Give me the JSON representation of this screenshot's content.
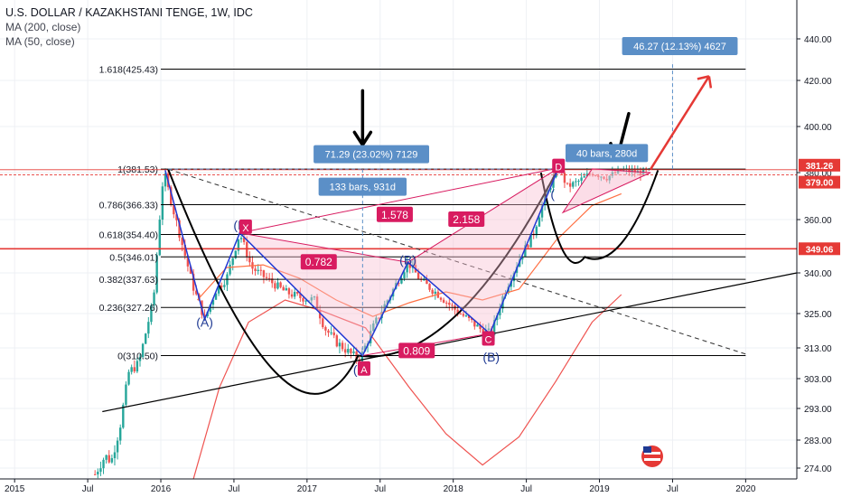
{
  "header": {
    "title": "U.S. DOLLAR / KAZAKHSTANI TENGE, 1W, IDC",
    "indicators": [
      "MA (200, close)",
      "MA (50, close)"
    ]
  },
  "colors": {
    "fib_line": "#000000",
    "red_level": "#e53935",
    "blue_pattern": "#2139d4",
    "magenta": "#d81b60",
    "pink_fill": "#f8bbd0",
    "box_blue": "#5b8fc7",
    "ma200": "#ef5350",
    "ma50": "#ff7043",
    "candle_up": "#26a69a",
    "candle_down": "#ef5350"
  },
  "chart_data": {
    "type": "candlestick",
    "price_axis_ticks": [
      440.0,
      420.0,
      400.0,
      380.0,
      360.0,
      340.0,
      325.0,
      313.0,
      303.0,
      293.0,
      283.0,
      274.0
    ],
    "price_axis_labels": [
      "440.00",
      "420.00",
      "400.00",
      "380.00",
      "360.00",
      "340.00",
      "325.00",
      "313.00",
      "303.00",
      "293.00",
      "283.00",
      "274.00"
    ],
    "time_axis_labels": [
      "2015",
      "Jul",
      "2016",
      "Jul",
      "2017",
      "Jul",
      "2018",
      "Jul",
      "2019",
      "Jul",
      "2020"
    ],
    "time_axis_values": [
      2015.0,
      2015.5,
      2016.0,
      2016.5,
      2017.0,
      2017.5,
      2018.0,
      2018.5,
      2019.0,
      2019.5,
      2020.0
    ],
    "xlim": [
      2014.9,
      2020.35
    ],
    "fib_levels": [
      {
        "label": "1.618(425.43)",
        "value": 425.43
      },
      {
        "label": "1(381.53)",
        "value": 381.53
      },
      {
        "label": "0.786(366.33)",
        "value": 366.33
      },
      {
        "label": "0.618(354.40)",
        "value": 354.4
      },
      {
        "label": "0.5(346.01)",
        "value": 346.01
      },
      {
        "label": "0.382(337.63)",
        "value": 337.63
      },
      {
        "label": "0.236(327.26)",
        "value": 327.26
      },
      {
        "label": "0(310.50)",
        "value": 310.5
      }
    ],
    "price_tags": [
      {
        "label": "381.26",
        "value": 381.26,
        "color": "#e53935"
      },
      {
        "label": "379.00",
        "value": 379.0,
        "color": "#e53935"
      },
      {
        "label": "349.06",
        "value": 349.06,
        "color": "#e53935"
      }
    ],
    "red_horizontal_levels": [
      381.26,
      379.0,
      349.06
    ],
    "point_labels": [
      {
        "label": "(A)",
        "x": 2016.3,
        "y": 322
      },
      {
        "label": "(B",
        "x": 2016.54,
        "y": 358
      },
      {
        "label": "X",
        "x": 2016.58,
        "y": 357,
        "boxed": true
      },
      {
        "label": "(B)",
        "x": 2017.69,
        "y": 345
      },
      {
        "label": "(",
        "x": 2017.33,
        "y": 306
      },
      {
        "label": "A",
        "x": 2017.39,
        "y": 306,
        "boxed": true
      },
      {
        "label": "C",
        "x": 2018.24,
        "y": 316,
        "boxed": true
      },
      {
        "label": "(B)",
        "x": 2018.26,
        "y": 310
      },
      {
        "label": "D",
        "x": 2018.72,
        "y": 382.5,
        "boxed": true
      },
      {
        "label": "(",
        "x": 2018.68,
        "y": 371
      }
    ],
    "ratios": [
      {
        "label": "0.782",
        "x": 2017.08,
        "y": 344
      },
      {
        "label": "1.578",
        "x": 2017.6,
        "y": 362
      },
      {
        "label": "2.158",
        "x": 2018.09,
        "y": 360
      },
      {
        "label": "0.809",
        "x": 2017.75,
        "y": 312
      }
    ],
    "measure_boxes": [
      {
        "label": "71.29 (23.02%) 7129",
        "x": 2017.44,
        "y": 388
      },
      {
        "label": "133 bars, 931d",
        "x": 2017.38,
        "y": 374
      },
      {
        "label": "40 bars, 280d",
        "x": 2019.05,
        "y": 388.5
      },
      {
        "label": "46.27 (12.13%) 4627",
        "x": 2019.55,
        "y": 436.5
      }
    ],
    "candles": []
  }
}
